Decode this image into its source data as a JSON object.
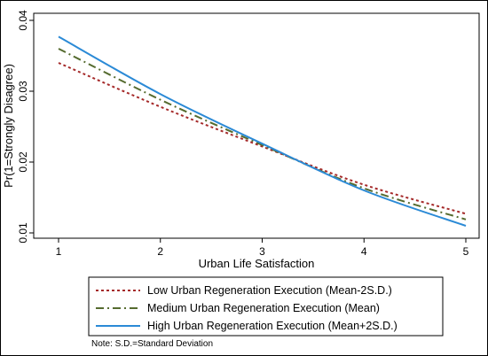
{
  "chart_data": {
    "type": "line",
    "title": "",
    "xlabel": "Urban Life Satisfaction",
    "ylabel": "Pr(1=Strongly Disagree)",
    "xlim": [
      1,
      5
    ],
    "ylim": [
      0.01,
      0.04
    ],
    "x_ticks": [
      1,
      2,
      3,
      4,
      5
    ],
    "y_ticks": [
      0.01,
      0.02,
      0.03,
      0.04
    ],
    "x_tick_labels": [
      "1",
      "2",
      "3",
      "4",
      "5"
    ],
    "y_tick_labels": [
      "0.01",
      "0.02",
      "0.03",
      "0.04"
    ],
    "grid": false,
    "legend_position": "bottom",
    "x": [
      1,
      2,
      3,
      4,
      5
    ],
    "series": [
      {
        "name": "Low Urban Regeneration Execution (Mean-2S.D.)",
        "values": [
          0.034,
          0.0278,
          0.0222,
          0.0168,
          0.0127
        ],
        "color": "#a52a2a",
        "dash": "dotted"
      },
      {
        "name": "Medium Urban Regeneration Execution (Mean)",
        "values": [
          0.036,
          0.0288,
          0.0224,
          0.0163,
          0.0119
        ],
        "color": "#556b2f",
        "dash": "dash-dot"
      },
      {
        "name": "High Urban Regeneration Execution (Mean+2S.D.)",
        "values": [
          0.0377,
          0.0296,
          0.0226,
          0.016,
          0.011
        ],
        "color": "#2b8ad6",
        "dash": "solid"
      }
    ],
    "note": "Note: S.D.=Standard Deviation"
  }
}
